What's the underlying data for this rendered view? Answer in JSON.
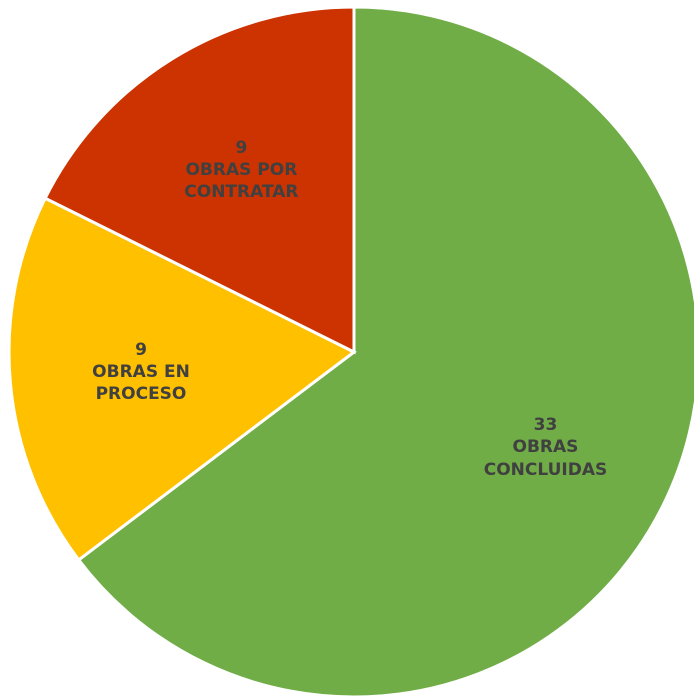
{
  "chart_data": {
    "type": "pie",
    "categories": [
      "OBRAS CONCLUIDAS",
      "OBRAS EN PROCESO",
      "OBRAS POR CONTRATAR"
    ],
    "values": [
      33,
      9,
      9
    ],
    "colors": [
      "#70ad47",
      "#ffc000",
      "#cc3300"
    ]
  }
}
